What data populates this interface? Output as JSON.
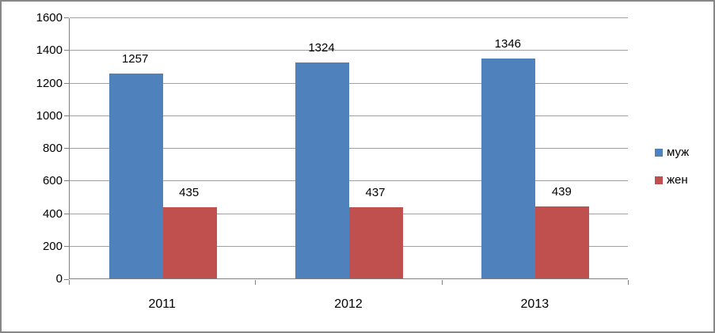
{
  "chart_data": {
    "type": "bar",
    "categories": [
      "2011",
      "2012",
      "2013"
    ],
    "series": [
      {
        "name": "муж",
        "color": "#4F81BD",
        "values": [
          1257,
          1324,
          1346
        ]
      },
      {
        "name": "жен",
        "color": "#C0504D",
        "values": [
          435,
          437,
          439
        ]
      }
    ],
    "title": "",
    "xlabel": "",
    "ylabel": "",
    "ylim": [
      0,
      1600
    ],
    "yticks": [
      0,
      200,
      400,
      600,
      800,
      1000,
      1200,
      1400,
      1600
    ],
    "grid": true,
    "data_labels": true,
    "legend_position": "right"
  },
  "colors": {
    "background": "#FFFFFF",
    "frame_border": "#878787",
    "gridline": "#A0A0A0",
    "axis": "#808080",
    "text": "#000000"
  }
}
